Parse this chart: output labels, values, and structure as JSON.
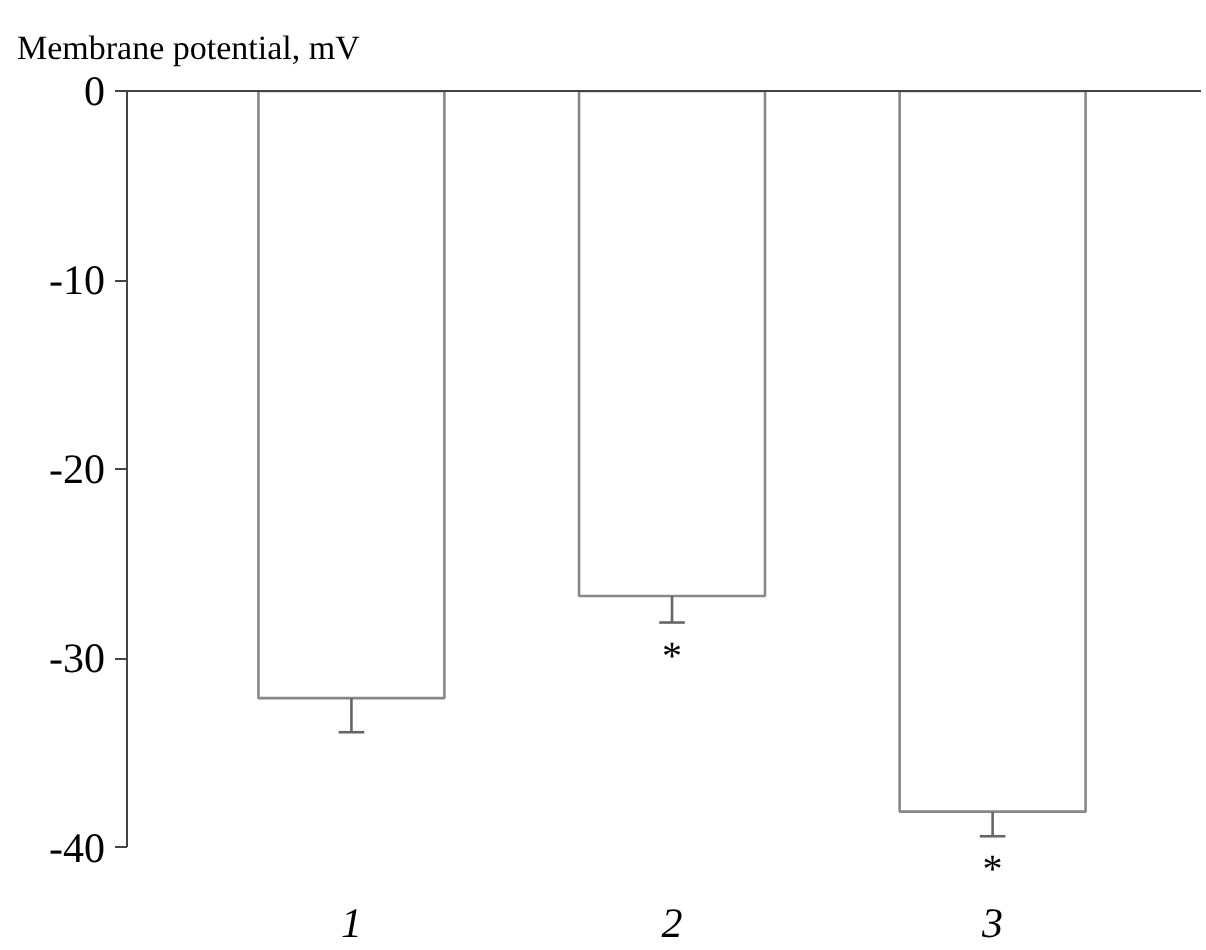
{
  "chart_data": {
    "type": "bar",
    "title": "Membrane potential, mV",
    "categories": [
      "1",
      "2",
      "3"
    ],
    "values": [
      -32.1,
      -26.7,
      -38.1
    ],
    "errors": [
      [
        -33.9,
        -32.1
      ],
      [
        -28.1,
        -26.7
      ],
      [
        -39.4,
        -38.1
      ]
    ],
    "color": "#ffffff",
    "ylim": [
      -40,
      0
    ],
    "yticks": [
      0,
      -10,
      -20,
      -30,
      -40
    ],
    "grid": false,
    "annotations": [
      {
        "text": "*",
        "x": "2",
        "y": -28.1
      },
      {
        "text": "*",
        "x": "3",
        "y": -39.4
      }
    ]
  }
}
